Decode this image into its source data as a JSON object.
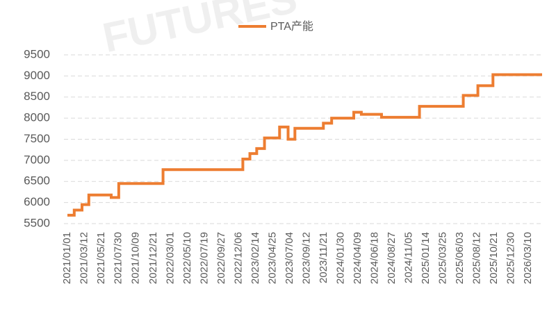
{
  "chart_data": {
    "type": "line",
    "step": true,
    "watermark": "FUTURES",
    "series": [
      {
        "name": "PTA产能",
        "color": "#ed7d31",
        "x": [
          "2021/01/01",
          "2021/01/29",
          "2021/03/02",
          "2021/03/30",
          "2021/06/30",
          "2021/07/31",
          "2022/01/29",
          "2022/12/23",
          "2023/01/21",
          "2023/02/18",
          "2023/03/22",
          "2023/05/23",
          "2023/06/27",
          "2023/07/25",
          "2023/11/19",
          "2023/12/23",
          "2024/03/23",
          "2024/04/23",
          "2024/07/15",
          "2024/12/18",
          "2025/06/16",
          "2025/08/15",
          "2025/10/16",
          "2026/05/06"
        ],
        "values": [
          5700,
          5820,
          5950,
          6180,
          6120,
          6450,
          6780,
          7030,
          7160,
          7280,
          7530,
          7790,
          7500,
          7760,
          7880,
          8000,
          8140,
          8090,
          8020,
          8280,
          8540,
          8770,
          9030,
          9030
        ]
      }
    ],
    "xlim": [
      "2021/01/01",
      "2026/05/06"
    ],
    "xticks": [
      "2021/01/01",
      "2021/03/12",
      "2021/05/21",
      "2021/07/30",
      "2021/10/09",
      "2021/12/21",
      "2022/03/01",
      "2022/05/10",
      "2022/07/19",
      "2022/09/27",
      "2022/12/06",
      "2023/02/14",
      "2023/04/25",
      "2023/07/04",
      "2023/09/12",
      "2023/11/21",
      "2024/01/30",
      "2024/04/09",
      "2024/06/18",
      "2024/08/27",
      "2024/11/05",
      "2025/01/14",
      "2025/03/25",
      "2025/06/03",
      "2025/08/12",
      "2025/10/21",
      "2025/12/30",
      "2026/03/10"
    ],
    "ylim": [
      5500,
      9500
    ],
    "yticks": [
      5500,
      6000,
      6500,
      7000,
      7500,
      8000,
      8500,
      9000,
      9500
    ],
    "grid": true,
    "legend": "top"
  }
}
